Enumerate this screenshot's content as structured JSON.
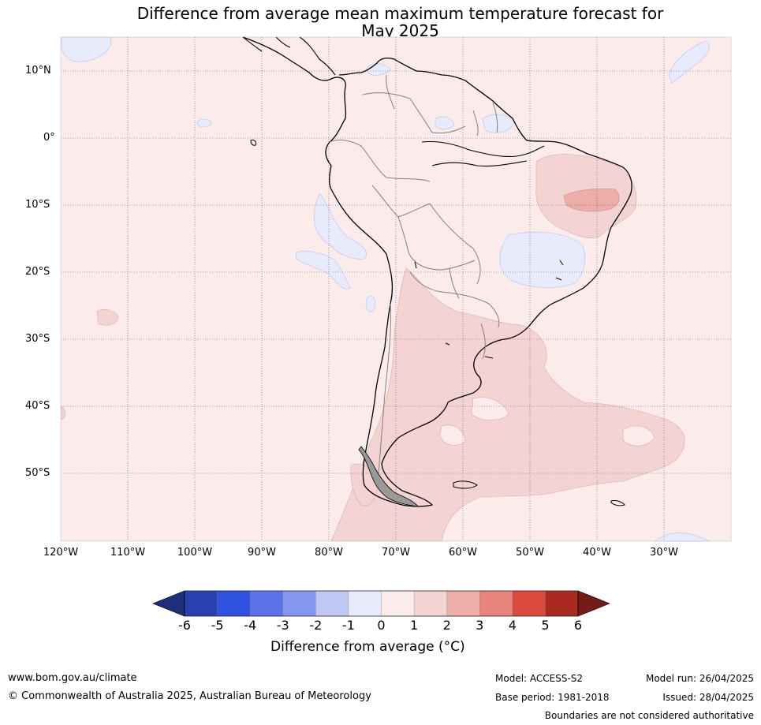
{
  "title_line1": "Difference from average mean maximum temperature forecast for",
  "title_line2": "May 2025",
  "lat_labels": [
    "10°N",
    "0°",
    "10°S",
    "20°S",
    "30°S",
    "40°S",
    "50°S"
  ],
  "lon_labels": [
    "120°W",
    "110°W",
    "100°W",
    "90°W",
    "80°W",
    "70°W",
    "60°W",
    "50°W",
    "40°W",
    "30°W"
  ],
  "colorbar": {
    "ticks": [
      "-6",
      "-5",
      "-4",
      "-3",
      "-2",
      "-1",
      "0",
      "1",
      "2",
      "3",
      "4",
      "5",
      "6"
    ],
    "colors": [
      "#1f2e7a",
      "#2a3fb0",
      "#3050e0",
      "#5b72e8",
      "#8698ee",
      "#c0c8f4",
      "#e8ebfb",
      "#fbeceb",
      "#f4d4d2",
      "#edada8",
      "#e8847c",
      "#dc4a3e",
      "#aa2a22",
      "#751c18"
    ],
    "label": "Difference from average (°C)"
  },
  "footer": {
    "website": "www.bom.gov.au/climate",
    "copyright": "© Commonwealth of Australia 2025, Australian Bureau of Meteorology",
    "model": "Model: ACCESS-S2",
    "base_period": "Base period: 1981-2018",
    "model_run": "Model run: 26/04/2025",
    "issued": "Issued: 28/04/2025",
    "disclaimer": "Boundaries are not considered authoritative"
  }
}
